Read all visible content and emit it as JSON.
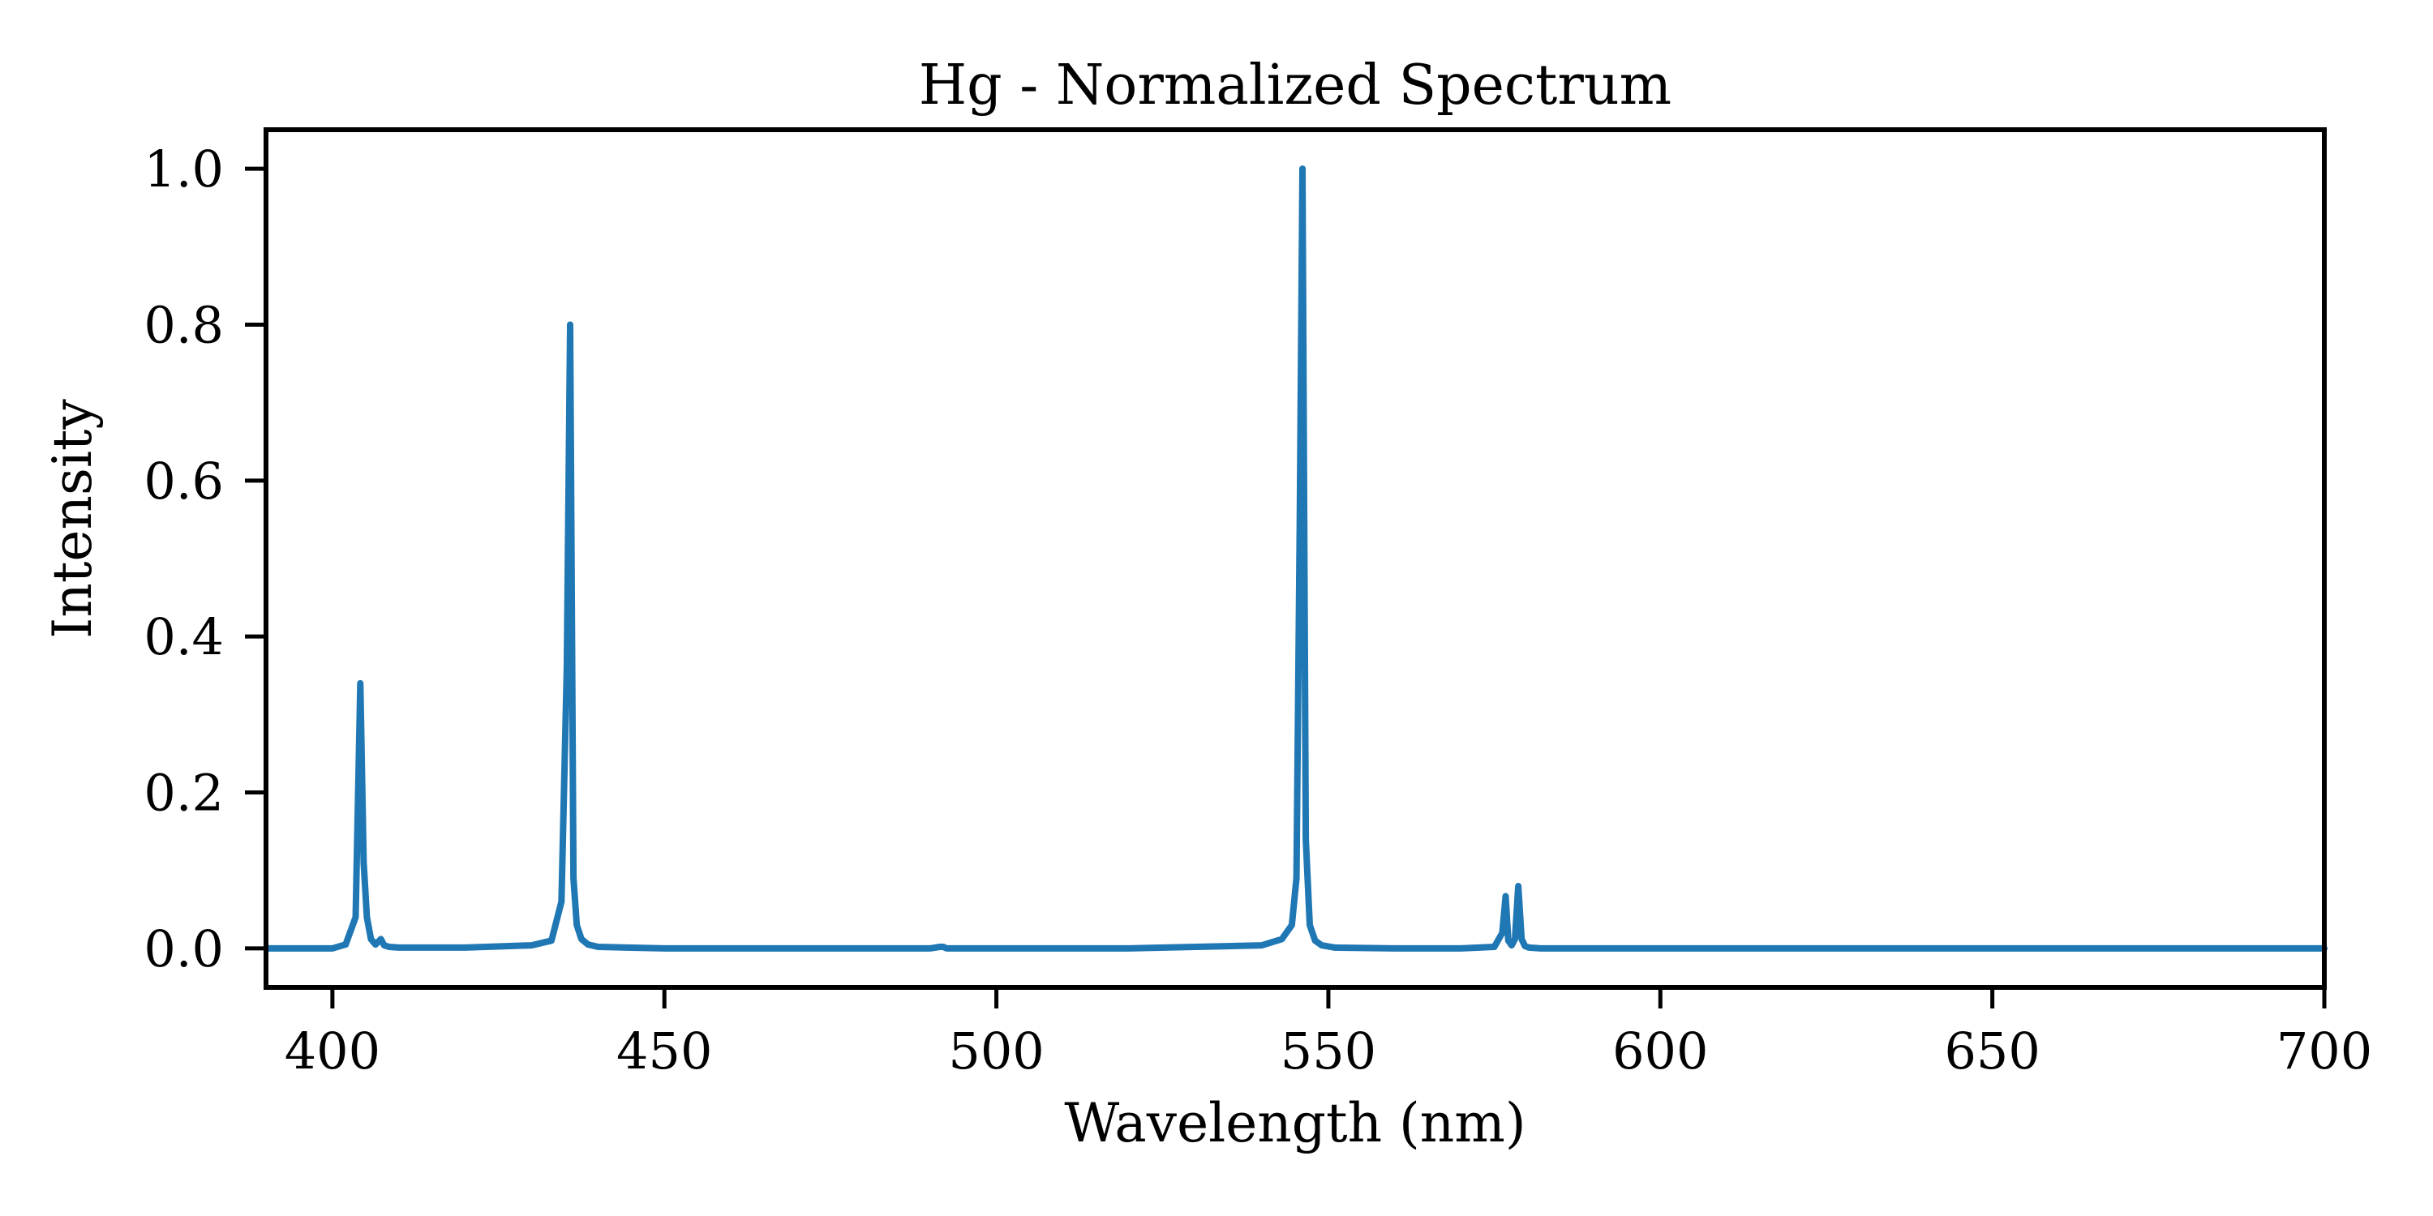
{
  "chart_data": {
    "type": "line",
    "title": "Hg - Normalized Spectrum",
    "xlabel": "Wavelength (nm)",
    "ylabel": "Intensity",
    "xlim": [
      390,
      700
    ],
    "ylim": [
      -0.05,
      1.05
    ],
    "xticks": [
      400,
      450,
      500,
      550,
      600,
      650,
      700
    ],
    "yticks": [
      0.0,
      0.2,
      0.4,
      0.6,
      0.8,
      1.0
    ],
    "xtick_labels": [
      "400",
      "450",
      "500",
      "550",
      "600",
      "650",
      "700"
    ],
    "ytick_labels": [
      "0.0",
      "0.2",
      "0.4",
      "0.6",
      "0.8",
      "1.0"
    ],
    "grid": false,
    "line_color": "#1f77b4",
    "series": [
      {
        "x": [
          390,
          400,
          402,
          403.5,
          404.2,
          404.7,
          405.2,
          405.8,
          406.5,
          407.3,
          407.8,
          408.5,
          410,
          420,
          430,
          433,
          434.5,
          435.3,
          435.8,
          436.3,
          436.8,
          437.5,
          438.5,
          440,
          450,
          460,
          480,
          490,
          491.5,
          492,
          492.5,
          500,
          520,
          540,
          543,
          544.5,
          545.2,
          545.7,
          546.1,
          546.6,
          547.2,
          548,
          549,
          551,
          560,
          570,
          575,
          576.2,
          576.7,
          577.1,
          577.6,
          578.1,
          578.6,
          579.1,
          579.6,
          580.2,
          582,
          600,
          650,
          690,
          700
        ],
        "values": [
          0.0,
          0.0,
          0.005,
          0.04,
          0.34,
          0.11,
          0.04,
          0.012,
          0.005,
          0.012,
          0.004,
          0.002,
          0.001,
          0.001,
          0.004,
          0.01,
          0.06,
          0.36,
          0.8,
          0.09,
          0.03,
          0.012,
          0.005,
          0.002,
          0.0,
          0.0,
          0.0,
          0.0,
          0.002,
          0.002,
          0.0,
          0.0,
          0.0,
          0.004,
          0.012,
          0.03,
          0.09,
          0.55,
          1.0,
          0.14,
          0.03,
          0.01,
          0.004,
          0.001,
          0.0,
          0.0,
          0.002,
          0.02,
          0.067,
          0.01,
          0.004,
          0.012,
          0.08,
          0.012,
          0.003,
          0.001,
          0.0,
          0.0,
          0.0,
          0.0,
          0.0
        ]
      }
    ]
  }
}
